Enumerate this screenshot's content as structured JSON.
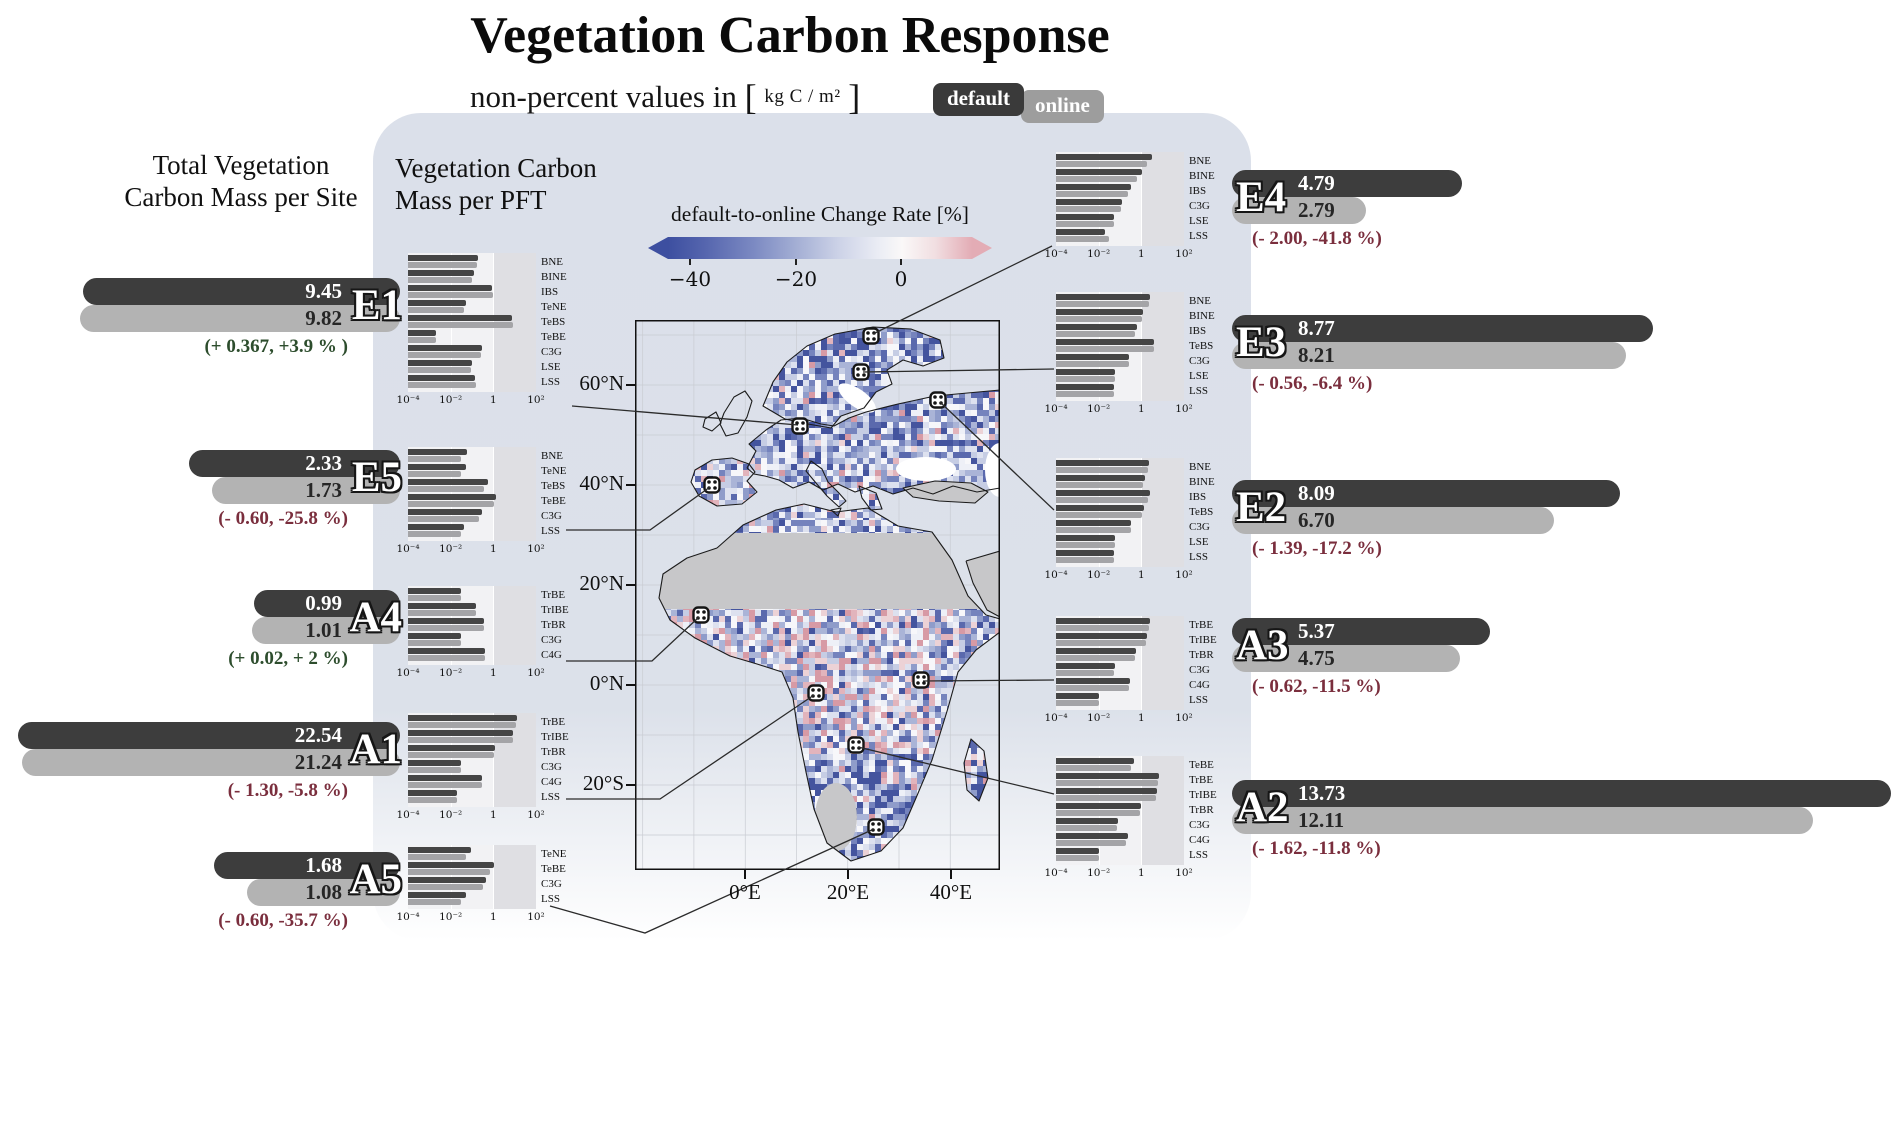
{
  "title": "Vegetation Carbon Response",
  "subtitle": {
    "text": "non-percent values in",
    "bracket_l": "[",
    "unit": "kg C / m²",
    "bracket_r": "]"
  },
  "legend": {
    "default_label": "default",
    "online_label": "online"
  },
  "headers": {
    "site_header_line1": "Total Vegetation",
    "site_header_line2": "Carbon Mass per Site",
    "pft_header_line1": "Vegetation Carbon",
    "pft_header_line2": "Mass per PFT"
  },
  "chart_data": {
    "type": "composite",
    "colorbar": {
      "title": "default-to-online Change Rate [%]",
      "tick_labels": [
        "−40",
        "−20",
        "0"
      ],
      "colors": {
        "low": "#3d4fa0",
        "mid": "#faf8f8",
        "high": "#e3acb5"
      }
    },
    "map": {
      "type": "heatmap",
      "lon_ticks": [
        "0°E",
        "20°E",
        "40°E"
      ],
      "lat_ticks": [
        "60°N",
        "40°N",
        "20°N",
        "0°N",
        "20°S"
      ]
    },
    "pft_axis": {
      "scale": "log",
      "tick_labels": [
        "10⁻⁴",
        "10⁻²",
        "1",
        "10²"
      ],
      "min": 0.0001,
      "max": 100
    },
    "series_colors": {
      "default": "#3d3d3d",
      "online": "#b3b3b3"
    },
    "sites": [
      {
        "id": "E1",
        "default": "9.45",
        "online": "9.82",
        "change": "(+ 0.367, +3.9 % )",
        "positive": true,
        "pft": [
          {
            "name": "BNE",
            "default": 0.2,
            "online": 0.17
          },
          {
            "name": "BINE",
            "default": 0.12,
            "online": 0.1
          },
          {
            "name": "IBS",
            "default": 0.85,
            "online": 0.95
          },
          {
            "name": "TeNE",
            "default": 0.05,
            "online": 0.04
          },
          {
            "name": "TeBS",
            "default": 7.5,
            "online": 7.9
          },
          {
            "name": "TeBE",
            "default": 0.002,
            "online": 0.002
          },
          {
            "name": "C3G",
            "default": 0.28,
            "online": 0.25
          },
          {
            "name": "LSE",
            "default": 0.1,
            "online": 0.09
          },
          {
            "name": "LSS",
            "default": 0.14,
            "online": 0.15
          }
        ]
      },
      {
        "id": "E5",
        "default": "2.33",
        "online": "1.73",
        "change": "(- 0.60, -25.8 %)",
        "positive": false,
        "pft": [
          {
            "name": "BNE",
            "default": 0.06,
            "online": 0.03
          },
          {
            "name": "TeNE",
            "default": 0.05,
            "online": 0.03
          },
          {
            "name": "TeBS",
            "default": 0.55,
            "online": 0.38
          },
          {
            "name": "TeBE",
            "default": 1.35,
            "online": 1.05
          },
          {
            "name": "C3G",
            "default": 0.28,
            "online": 0.21
          },
          {
            "name": "LSS",
            "default": 0.04,
            "online": 0.03
          }
        ]
      },
      {
        "id": "A4",
        "default": "0.99",
        "online": "1.01",
        "change": "(+ 0.02, + 2 %)",
        "positive": true,
        "pft": [
          {
            "name": "TrBE",
            "default": 0.03,
            "online": 0.03
          },
          {
            "name": "TrIBE",
            "default": 0.16,
            "online": 0.16
          },
          {
            "name": "TrBR",
            "default": 0.36,
            "online": 0.37
          },
          {
            "name": "C3G",
            "default": 0.03,
            "online": 0.03
          },
          {
            "name": "C4G",
            "default": 0.41,
            "online": 0.42
          }
        ]
      },
      {
        "id": "A1",
        "default": "22.54",
        "online": "21.24",
        "change": "(- 1.30, -5.8 %)",
        "positive": false,
        "pft": [
          {
            "name": "TrBE",
            "default": 12.4,
            "online": 11.6
          },
          {
            "name": "TrIBE",
            "default": 8.6,
            "online": 8.2
          },
          {
            "name": "TrBR",
            "default": 1.2,
            "online": 1.1
          },
          {
            "name": "C3G",
            "default": 0.03,
            "online": 0.03
          },
          {
            "name": "C4G",
            "default": 0.29,
            "online": 0.29
          },
          {
            "name": "LSS",
            "default": 0.02,
            "online": 0.02
          }
        ]
      },
      {
        "id": "A5",
        "default": "1.68",
        "online": "1.08",
        "change": "(- 0.60, -35.7 %)",
        "positive": false,
        "pft": [
          {
            "name": "TeNE",
            "default": 0.09,
            "online": 0.05
          },
          {
            "name": "TeBE",
            "default": 1.08,
            "online": 0.68
          },
          {
            "name": "C3G",
            "default": 0.46,
            "online": 0.32
          },
          {
            "name": "LSS",
            "default": 0.05,
            "online": 0.03
          }
        ]
      },
      {
        "id": "E4",
        "default": "4.79",
        "online": "2.79",
        "change": "(- 2.00, -41.8 %)",
        "positive": false,
        "pft": [
          {
            "name": "BNE",
            "default": 3.2,
            "online": 1.75
          },
          {
            "name": "BINE",
            "default": 1.05,
            "online": 0.62
          },
          {
            "name": "IBS",
            "default": 0.34,
            "online": 0.23
          },
          {
            "name": "C3G",
            "default": 0.13,
            "online": 0.11
          },
          {
            "name": "LSE",
            "default": 0.05,
            "online": 0.05
          },
          {
            "name": "LSS",
            "default": 0.02,
            "online": 0.03
          }
        ]
      },
      {
        "id": "E3",
        "default": "8.77",
        "online": "8.21",
        "change": "(- 0.56, -6.4 %)",
        "positive": false,
        "pft": [
          {
            "name": "BNE",
            "default": 2.6,
            "online": 2.4
          },
          {
            "name": "BINE",
            "default": 1.2,
            "online": 1.1
          },
          {
            "name": "IBS",
            "default": 0.6,
            "online": 0.5
          },
          {
            "name": "TeBS",
            "default": 4.0,
            "online": 3.85
          },
          {
            "name": "C3G",
            "default": 0.26,
            "online": 0.25
          },
          {
            "name": "LSE",
            "default": 0.06,
            "online": 0.06
          },
          {
            "name": "LSS",
            "default": 0.05,
            "online": 0.05
          }
        ]
      },
      {
        "id": "E2",
        "default": "8.09",
        "online": "6.70",
        "change": "(- 1.39, -17.2 %)",
        "positive": false,
        "pft": [
          {
            "name": "BNE",
            "default": 2.4,
            "online": 1.95
          },
          {
            "name": "BINE",
            "default": 1.4,
            "online": 1.15
          },
          {
            "name": "IBS",
            "default": 2.5,
            "online": 2.1
          },
          {
            "name": "TeBS",
            "default": 1.35,
            "online": 1.07
          },
          {
            "name": "C3G",
            "default": 0.33,
            "online": 0.32
          },
          {
            "name": "LSE",
            "default": 0.06,
            "online": 0.06
          },
          {
            "name": "LSS",
            "default": 0.05,
            "online": 0.05
          }
        ]
      },
      {
        "id": "A3",
        "default": "5.37",
        "online": "4.75",
        "change": "(- 0.62, -11.5 %)",
        "positive": false,
        "pft": [
          {
            "name": "TrBE",
            "default": 2.6,
            "online": 2.3
          },
          {
            "name": "TrIBE",
            "default": 1.85,
            "online": 1.64
          },
          {
            "name": "TrBR",
            "default": 0.55,
            "online": 0.49
          },
          {
            "name": "C3G",
            "default": 0.06,
            "online": 0.05
          },
          {
            "name": "C4G",
            "default": 0.3,
            "online": 0.26
          },
          {
            "name": "LSS",
            "default": 0.01,
            "online": 0.01
          }
        ]
      },
      {
        "id": "A2",
        "default": "13.73",
        "online": "12.11",
        "change": "(- 1.62, -11.8 %)",
        "positive": false,
        "pft": [
          {
            "name": "TeBE",
            "default": 0.45,
            "online": 0.34
          },
          {
            "name": "TrBE",
            "default": 6.6,
            "online": 5.85
          },
          {
            "name": "TrIBE",
            "default": 5.4,
            "online": 4.8
          },
          {
            "name": "TrBR",
            "default": 0.95,
            "online": 0.85
          },
          {
            "name": "C3G",
            "default": 0.08,
            "online": 0.07
          },
          {
            "name": "C4G",
            "default": 0.24,
            "online": 0.19
          },
          {
            "name": "LSS",
            "default": 0.01,
            "online": 0.01
          }
        ]
      }
    ]
  }
}
